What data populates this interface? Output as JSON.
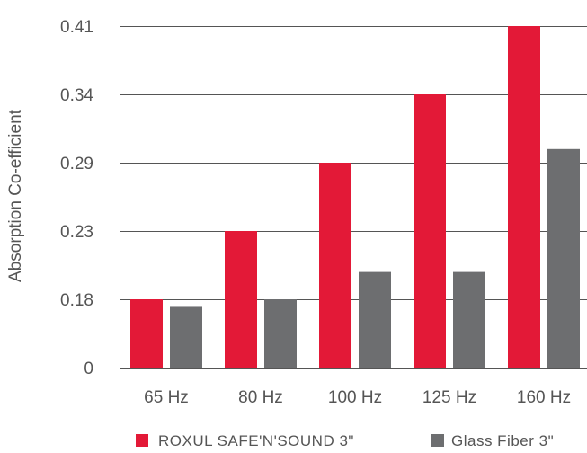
{
  "chart_data": {
    "type": "bar",
    "title": "",
    "xlabel": "",
    "ylabel": "Absorption Co-efficient",
    "categories": [
      "65 Hz",
      "80 Hz",
      "100 Hz",
      "125 Hz",
      "160 Hz"
    ],
    "y_ticks": [
      "0",
      "0.18",
      "0.23",
      "0.29",
      "0.34",
      "0.41"
    ],
    "grid": true,
    "legend_position": "bottom",
    "series": [
      {
        "name": "ROXUL SAFE'N'SOUND 3\"",
        "color": "#e31937",
        "values": [
          0.18,
          0.23,
          0.29,
          0.34,
          0.41
        ]
      },
      {
        "name": "Glass Fiber 3\"",
        "color": "#6d6e70",
        "values": [
          0.16,
          0.18,
          0.2,
          0.2,
          0.3
        ]
      }
    ]
  }
}
